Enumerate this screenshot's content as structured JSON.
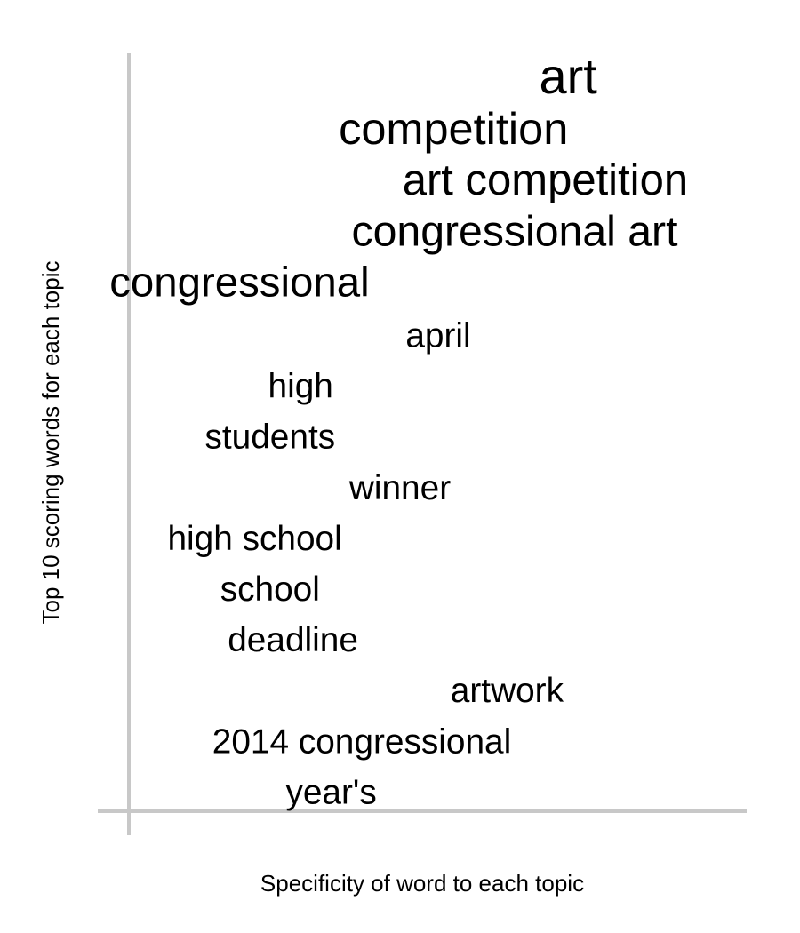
{
  "chart_data": {
    "type": "text-scatter",
    "title": "",
    "xlabel": "Specificity of word to each topic",
    "ylabel": "Top 10 scoring words for each topic",
    "grid": false,
    "legend": "none",
    "words": [
      {
        "text": "art",
        "specificity": 0.72,
        "weight": 1.0
      },
      {
        "text": "competition",
        "specificity": 0.57,
        "weight": 0.86
      },
      {
        "text": "art competition",
        "specificity": 0.69,
        "weight": 0.82
      },
      {
        "text": "congressional art",
        "specificity": 0.65,
        "weight": 0.8
      },
      {
        "text": "congressional",
        "specificity": 0.29,
        "weight": 0.78
      },
      {
        "text": "april",
        "specificity": 0.55,
        "weight": 0.56
      },
      {
        "text": "high",
        "specificity": 0.37,
        "weight": 0.56
      },
      {
        "text": "students",
        "specificity": 0.33,
        "weight": 0.56
      },
      {
        "text": "winner",
        "specificity": 0.5,
        "weight": 0.56
      },
      {
        "text": "high school",
        "specificity": 0.31,
        "weight": 0.56
      },
      {
        "text": "school",
        "specificity": 0.33,
        "weight": 0.56
      },
      {
        "text": "deadline",
        "specificity": 0.36,
        "weight": 0.56
      },
      {
        "text": "artwork",
        "specificity": 0.64,
        "weight": 0.56
      },
      {
        "text": "2014 congressional",
        "specificity": 0.45,
        "weight": 0.56
      },
      {
        "text": "year's",
        "specificity": 0.41,
        "weight": 0.56
      }
    ]
  }
}
